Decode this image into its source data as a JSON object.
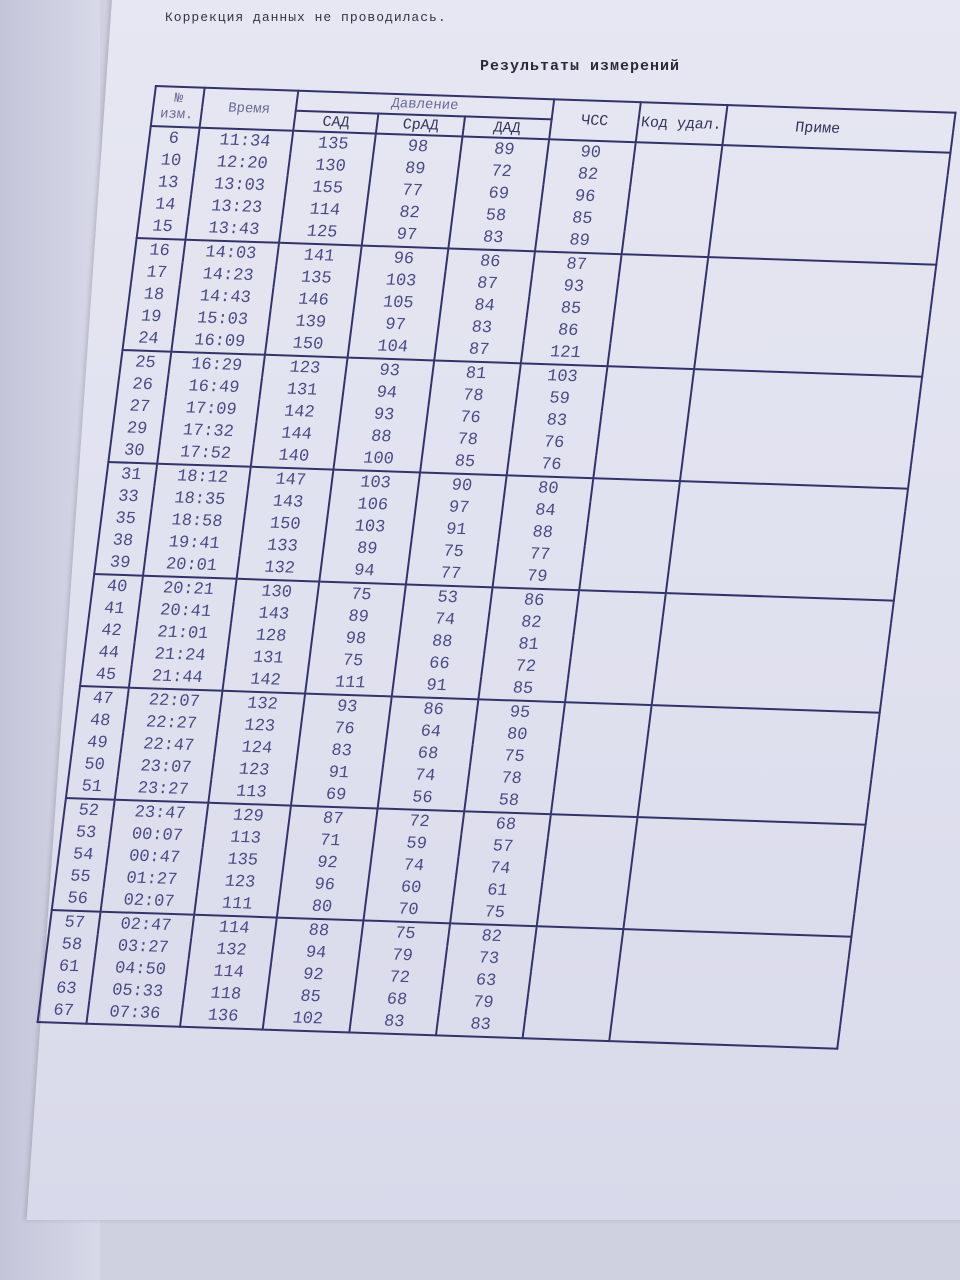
{
  "document": {
    "note": "Коррекция данных не проводилась.",
    "title": "Результаты измерений"
  },
  "table": {
    "headers": {
      "num": "№ изм.",
      "time": "Время",
      "pressure": "Давление",
      "sad": "САД",
      "srad": "СрАД",
      "dad": "ДАД",
      "hr": "ЧСС",
      "code": "Код удал.",
      "note": "Приме"
    },
    "rows": [
      [
        "6",
        "11:34",
        "135",
        "98",
        "89",
        "90"
      ],
      [
        "10",
        "12:20",
        "130",
        "89",
        "72",
        "82"
      ],
      [
        "13",
        "13:03",
        "155",
        "77",
        "69",
        "96"
      ],
      [
        "14",
        "13:23",
        "114",
        "82",
        "58",
        "85"
      ],
      [
        "15",
        "13:43",
        "125",
        "97",
        "83",
        "89"
      ],
      [
        "16",
        "14:03",
        "141",
        "96",
        "86",
        "87"
      ],
      [
        "17",
        "14:23",
        "135",
        "103",
        "87",
        "93"
      ],
      [
        "18",
        "14:43",
        "146",
        "105",
        "84",
        "85"
      ],
      [
        "19",
        "15:03",
        "139",
        "97",
        "83",
        "86"
      ],
      [
        "24",
        "16:09",
        "150",
        "104",
        "87",
        "121"
      ],
      [
        "25",
        "16:29",
        "123",
        "93",
        "81",
        "103"
      ],
      [
        "26",
        "16:49",
        "131",
        "94",
        "78",
        "59"
      ],
      [
        "27",
        "17:09",
        "142",
        "93",
        "76",
        "83"
      ],
      [
        "29",
        "17:32",
        "144",
        "88",
        "78",
        "76"
      ],
      [
        "30",
        "17:52",
        "140",
        "100",
        "85",
        "76"
      ],
      [
        "31",
        "18:12",
        "147",
        "103",
        "90",
        "80"
      ],
      [
        "33",
        "18:35",
        "143",
        "106",
        "97",
        "84"
      ],
      [
        "35",
        "18:58",
        "150",
        "103",
        "91",
        "88"
      ],
      [
        "38",
        "19:41",
        "133",
        "89",
        "75",
        "77"
      ],
      [
        "39",
        "20:01",
        "132",
        "94",
        "77",
        "79"
      ],
      [
        "40",
        "20:21",
        "130",
        "75",
        "53",
        "86"
      ],
      [
        "41",
        "20:41",
        "143",
        "89",
        "74",
        "82"
      ],
      [
        "42",
        "21:01",
        "128",
        "98",
        "88",
        "81"
      ],
      [
        "44",
        "21:24",
        "131",
        "75",
        "66",
        "72"
      ],
      [
        "45",
        "21:44",
        "142",
        "111",
        "91",
        "85"
      ],
      [
        "47",
        "22:07",
        "132",
        "93",
        "86",
        "95"
      ],
      [
        "48",
        "22:27",
        "123",
        "76",
        "64",
        "80"
      ],
      [
        "49",
        "22:47",
        "124",
        "83",
        "68",
        "75"
      ],
      [
        "50",
        "23:07",
        "123",
        "91",
        "74",
        "78"
      ],
      [
        "51",
        "23:27",
        "113",
        "69",
        "56",
        "58"
      ],
      [
        "52",
        "23:47",
        "129",
        "87",
        "72",
        "68"
      ],
      [
        "53",
        "00:07",
        "113",
        "71",
        "59",
        "57"
      ],
      [
        "54",
        "00:47",
        "135",
        "92",
        "74",
        "74"
      ],
      [
        "55",
        "01:27",
        "123",
        "96",
        "60",
        "61"
      ],
      [
        "56",
        "02:07",
        "111",
        "80",
        "70",
        "75"
      ],
      [
        "57",
        "02:47",
        "114",
        "88",
        "75",
        "82"
      ],
      [
        "58",
        "03:27",
        "132",
        "94",
        "79",
        "73"
      ],
      [
        "61",
        "04:50",
        "114",
        "92",
        "72",
        "63"
      ],
      [
        "63",
        "05:33",
        "118",
        "85",
        "68",
        "79"
      ],
      [
        "67",
        "07:36",
        "136",
        "102",
        "83",
        "83"
      ]
    ]
  }
}
